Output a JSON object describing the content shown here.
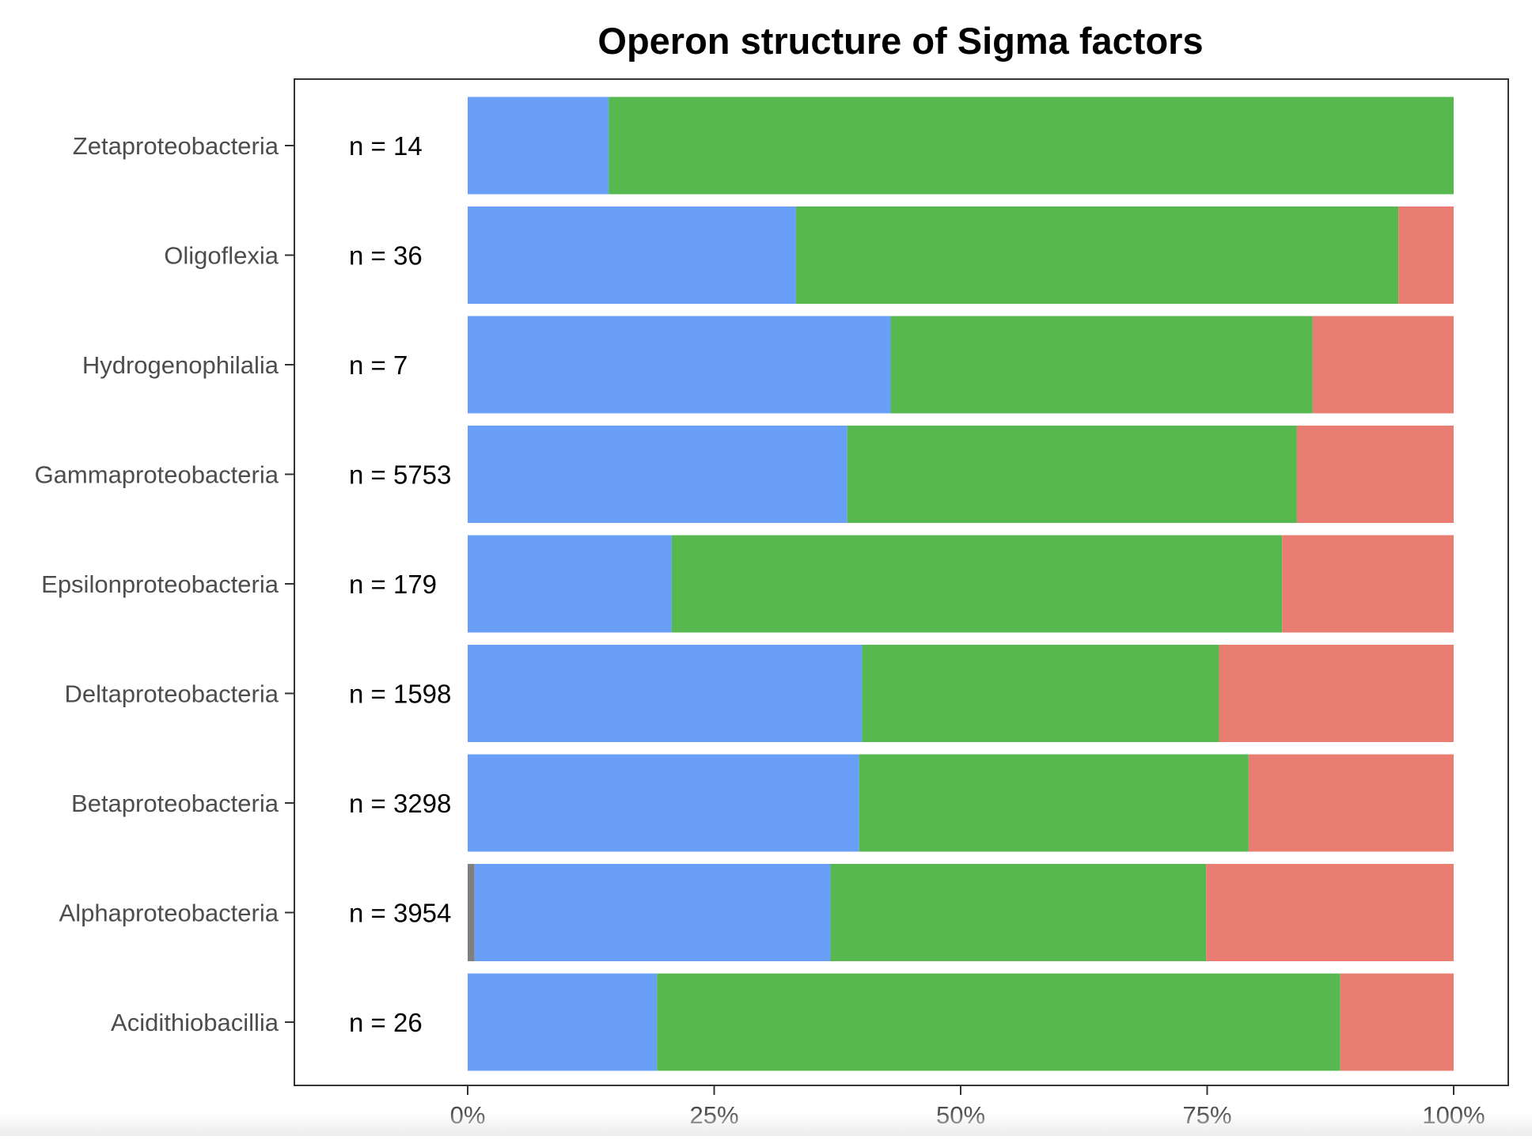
{
  "chart_data": {
    "type": "bar",
    "orientation": "horizontal",
    "stacked": true,
    "normalized": true,
    "title": "Operon structure of Sigma factors",
    "xlabel": "",
    "ylabel": "",
    "xlim": [
      0,
      1
    ],
    "x_ticks": [
      0,
      0.25,
      0.5,
      0.75,
      1.0
    ],
    "x_tick_labels": [
      "0%",
      "25%",
      "50%",
      "75%",
      "100%"
    ],
    "grid": false,
    "legend": "none",
    "categories": [
      "Zetaproteobacteria",
      "Oligoflexia",
      "Hydrogenophilalia",
      "Gammaproteobacteria",
      "Epsilonproteobacteria",
      "Deltaproteobacteria",
      "Betaproteobacteria",
      "Alphaproteobacteria",
      "Acidithiobacillia"
    ],
    "n_labels": [
      "n = 14",
      "n = 36",
      "n = 7",
      "n = 5753",
      "n = 179",
      "n = 1598",
      "n = 3298",
      "n = 3954",
      "n = 26"
    ],
    "series": [
      {
        "color": "#7f7f7f",
        "values": [
          0,
          0,
          0,
          0,
          0,
          0,
          0,
          0.007,
          0
        ]
      },
      {
        "color": "#6a9ff8",
        "values": [
          0.143,
          0.333,
          0.429,
          0.385,
          0.207,
          0.4,
          0.397,
          0.361,
          0.192
        ]
      },
      {
        "color": "#56b84f",
        "values": [
          0.857,
          0.611,
          0.428,
          0.456,
          0.619,
          0.362,
          0.395,
          0.381,
          0.693
        ]
      },
      {
        "color": "#e97d72",
        "values": [
          0,
          0.056,
          0.143,
          0.159,
          0.174,
          0.238,
          0.208,
          0.251,
          0.115
        ]
      }
    ]
  }
}
